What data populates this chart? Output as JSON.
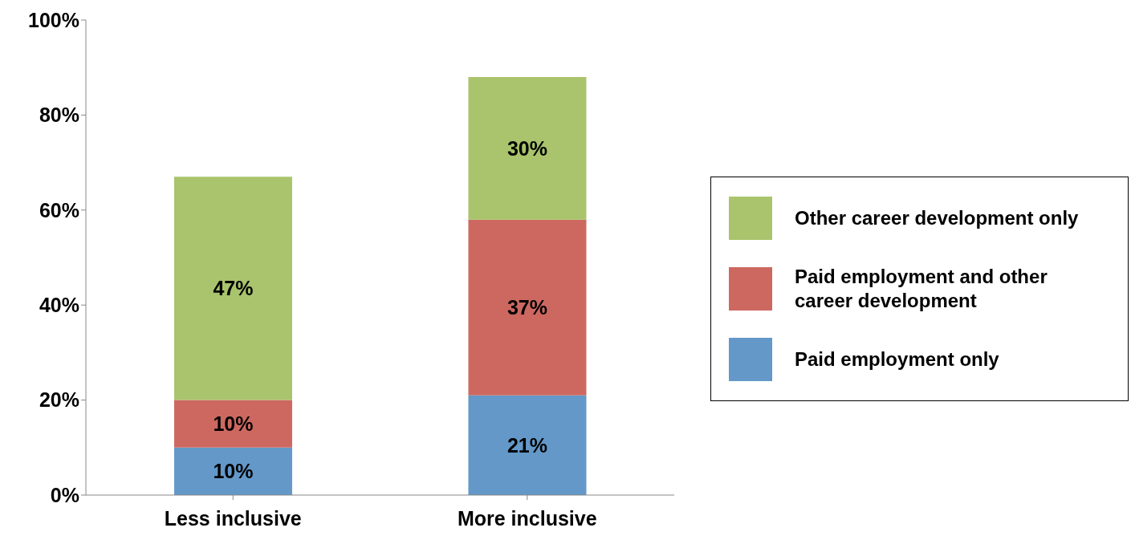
{
  "chart_data": {
    "type": "bar",
    "stacked": true,
    "categories": [
      "Less inclusive",
      "More inclusive"
    ],
    "series": [
      {
        "name": "Paid employment only",
        "color": "#6398c9",
        "values": [
          10,
          21
        ],
        "value_labels": [
          "10%",
          "21%"
        ]
      },
      {
        "name": "Paid employment and other career development",
        "color": "#cd6860",
        "values": [
          10,
          37
        ],
        "value_labels": [
          "10%",
          "37%"
        ]
      },
      {
        "name": "Other career development only",
        "color": "#a9c46c",
        "values": [
          47,
          30
        ],
        "value_labels": [
          "47%",
          "30%"
        ]
      }
    ],
    "ylim": [
      0,
      100
    ],
    "yticks": [
      {
        "value": 0,
        "label": "0%"
      },
      {
        "value": 20,
        "label": "20%"
      },
      {
        "value": 40,
        "label": "40%"
      },
      {
        "value": 60,
        "label": "60%"
      },
      {
        "value": 80,
        "label": "80%"
      },
      {
        "value": 100,
        "label": "100%"
      }
    ],
    "grid": false,
    "legend": "right"
  }
}
